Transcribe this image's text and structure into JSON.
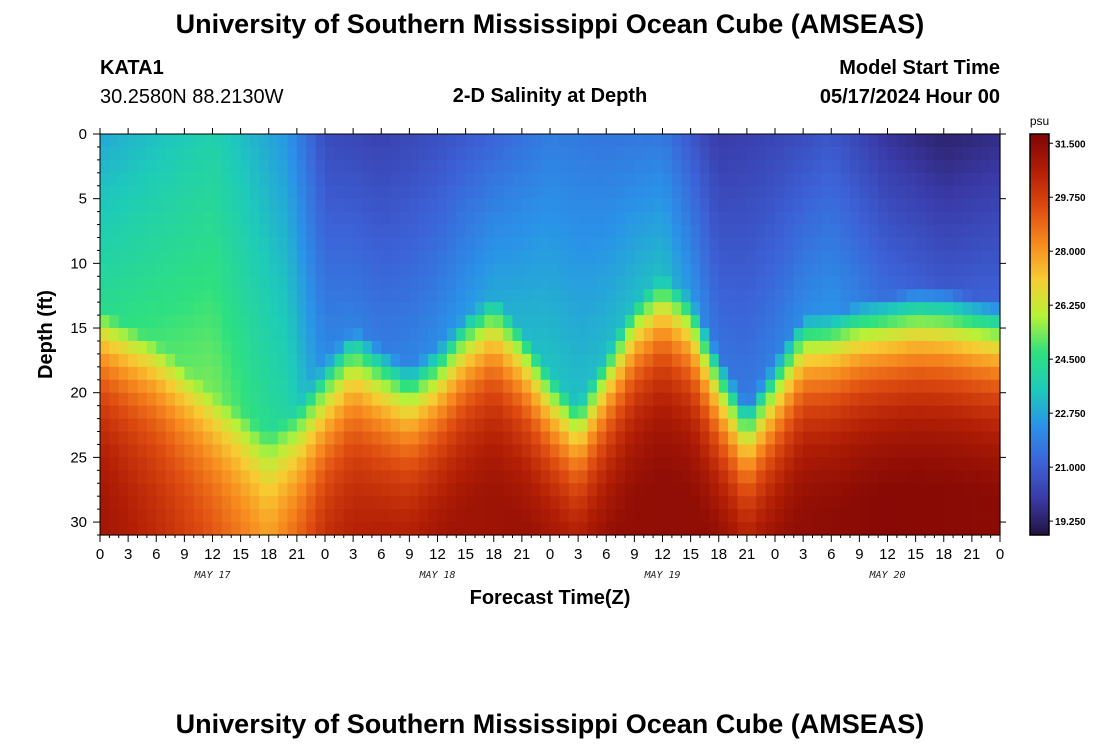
{
  "header": {
    "title_top": "University of Southern Mississippi Ocean Cube (AMSEAS)",
    "station": "KATA1",
    "coords": "30.2580N  88.2130W",
    "subtitle": "2-D Salinity at Depth",
    "model_start_label": "Model Start Time",
    "model_start_value": "05/17/2024 Hour 00",
    "title_bottom": "University of Southern Mississippi Ocean Cube (AMSEAS)"
  },
  "chart_data": {
    "type": "heatmap",
    "title": "2-D Salinity at Depth",
    "xlabel": "Forecast Time(Z)",
    "ylabel": "Depth (ft)",
    "x_range_hours": [
      0,
      96
    ],
    "y_range_ft": [
      0,
      31
    ],
    "x_tick_labels": [
      "0",
      "3",
      "6",
      "9",
      "12",
      "15",
      "18",
      "21",
      "0",
      "3",
      "6",
      "9",
      "12",
      "15",
      "18",
      "21",
      "0",
      "3",
      "6",
      "9",
      "12",
      "15",
      "18",
      "21",
      "0",
      "3",
      "6",
      "9",
      "12",
      "15",
      "18",
      "21",
      "0"
    ],
    "day_labels": [
      "MAY 17",
      "MAY 18",
      "MAY 19",
      "MAY 20"
    ],
    "y_ticks": [
      0,
      5,
      10,
      15,
      20,
      25,
      30
    ],
    "colorbar": {
      "unit": "psu",
      "ticks": [
        "31.500",
        "29.750",
        "28.000",
        "26.250",
        "24.500",
        "22.750",
        "21.000",
        "19.250"
      ],
      "range": [
        18.8,
        31.8
      ],
      "colors": [
        "#23123f",
        "#3a3aa8",
        "#3c63d8",
        "#2a93e8",
        "#1ecbb9",
        "#2fe07f",
        "#b6f238",
        "#f7cc33",
        "#f78a1f",
        "#dd4a10",
        "#b11e05",
        "#7f0505"
      ]
    },
    "columns_hour_interval": 1,
    "depth_rows_ft": 1,
    "halocline_depth_ft": {
      "hours": [
        0,
        6,
        12,
        15,
        18,
        21,
        24,
        27,
        30,
        33,
        36,
        39,
        42,
        45,
        48,
        51,
        54,
        57,
        60,
        63,
        66,
        69,
        72,
        75,
        78,
        81,
        84,
        87,
        90,
        93,
        96
      ],
      "depth_ft": [
        15.5,
        18,
        22,
        23.5,
        25,
        23,
        19.5,
        17,
        18.5,
        20,
        18.5,
        16,
        14.5,
        17,
        20.5,
        23,
        19,
        15,
        13,
        14.5,
        19,
        23,
        19.5,
        16,
        16,
        15,
        14.5,
        14,
        14,
        14.5,
        15
      ]
    },
    "surface_salinity_psu": {
      "hours": [
        0,
        12,
        20,
        24,
        30,
        36,
        42,
        48,
        54,
        60,
        66,
        72,
        78,
        84,
        90,
        96
      ],
      "psu": [
        22.8,
        23.8,
        22.4,
        20.5,
        20.2,
        20.6,
        21.2,
        21.8,
        21.6,
        21.7,
        20.0,
        20.3,
        20.8,
        19.8,
        19.3,
        19.6
      ]
    },
    "bottom_salinity_psu": {
      "hours": [
        0,
        6,
        12,
        18,
        24,
        36,
        48,
        60,
        72,
        84,
        96
      ],
      "psu": [
        31.0,
        30.3,
        29.5,
        28.5,
        30.3,
        31.0,
        31.2,
        31.4,
        31.3,
        31.6,
        31.5
      ]
    }
  }
}
